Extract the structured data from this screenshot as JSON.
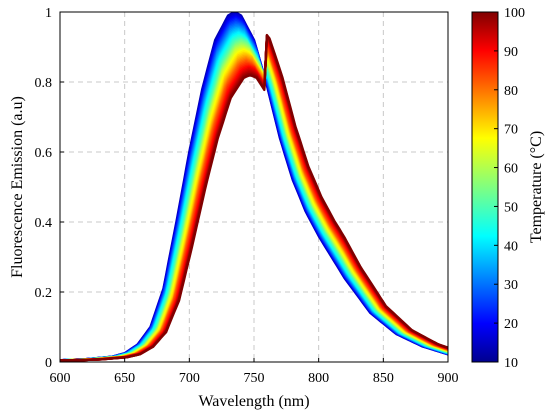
{
  "chart_data": {
    "type": "line",
    "title": "",
    "xlabel": "Wavelength (nm)",
    "ylabel": "Fluorescence Emission (a.u)",
    "xlim": [
      600,
      900
    ],
    "ylim": [
      0,
      1
    ],
    "x_ticks": [
      "600",
      "650",
      "700",
      "750",
      "800",
      "850",
      "900"
    ],
    "y_ticks": [
      "0",
      "0.2",
      "0.4",
      "0.6",
      "0.8",
      "1"
    ],
    "grid": true,
    "colorbar": {
      "label": "Temperature (°C)",
      "range": [
        10,
        100
      ],
      "ticks": [
        "10",
        "20",
        "30",
        "40",
        "50",
        "60",
        "70",
        "80",
        "90",
        "100"
      ],
      "colormap": "jet"
    },
    "series_parameter": "temperature",
    "series_temperatures": [
      10,
      20,
      30,
      40,
      50,
      60,
      70,
      80,
      90,
      100
    ],
    "peak_wavelength_nm": [
      735,
      736,
      737,
      738,
      740,
      741,
      743,
      744,
      746,
      747
    ],
    "peak_intensity": [
      1.0,
      0.98,
      0.96,
      0.94,
      0.92,
      0.9,
      0.88,
      0.86,
      0.84,
      0.82
    ],
    "reference_curve_10C": {
      "x": [
        600,
        620,
        640,
        650,
        660,
        670,
        680,
        690,
        700,
        710,
        720,
        730,
        735,
        740,
        750,
        760,
        770,
        780,
        790,
        800,
        820,
        840,
        860,
        880,
        900
      ],
      "y": [
        0.005,
        0.008,
        0.015,
        0.025,
        0.05,
        0.1,
        0.21,
        0.4,
        0.6,
        0.78,
        0.92,
        0.99,
        1.0,
        0.99,
        0.92,
        0.79,
        0.64,
        0.52,
        0.43,
        0.36,
        0.24,
        0.14,
        0.08,
        0.045,
        0.022
      ]
    }
  }
}
